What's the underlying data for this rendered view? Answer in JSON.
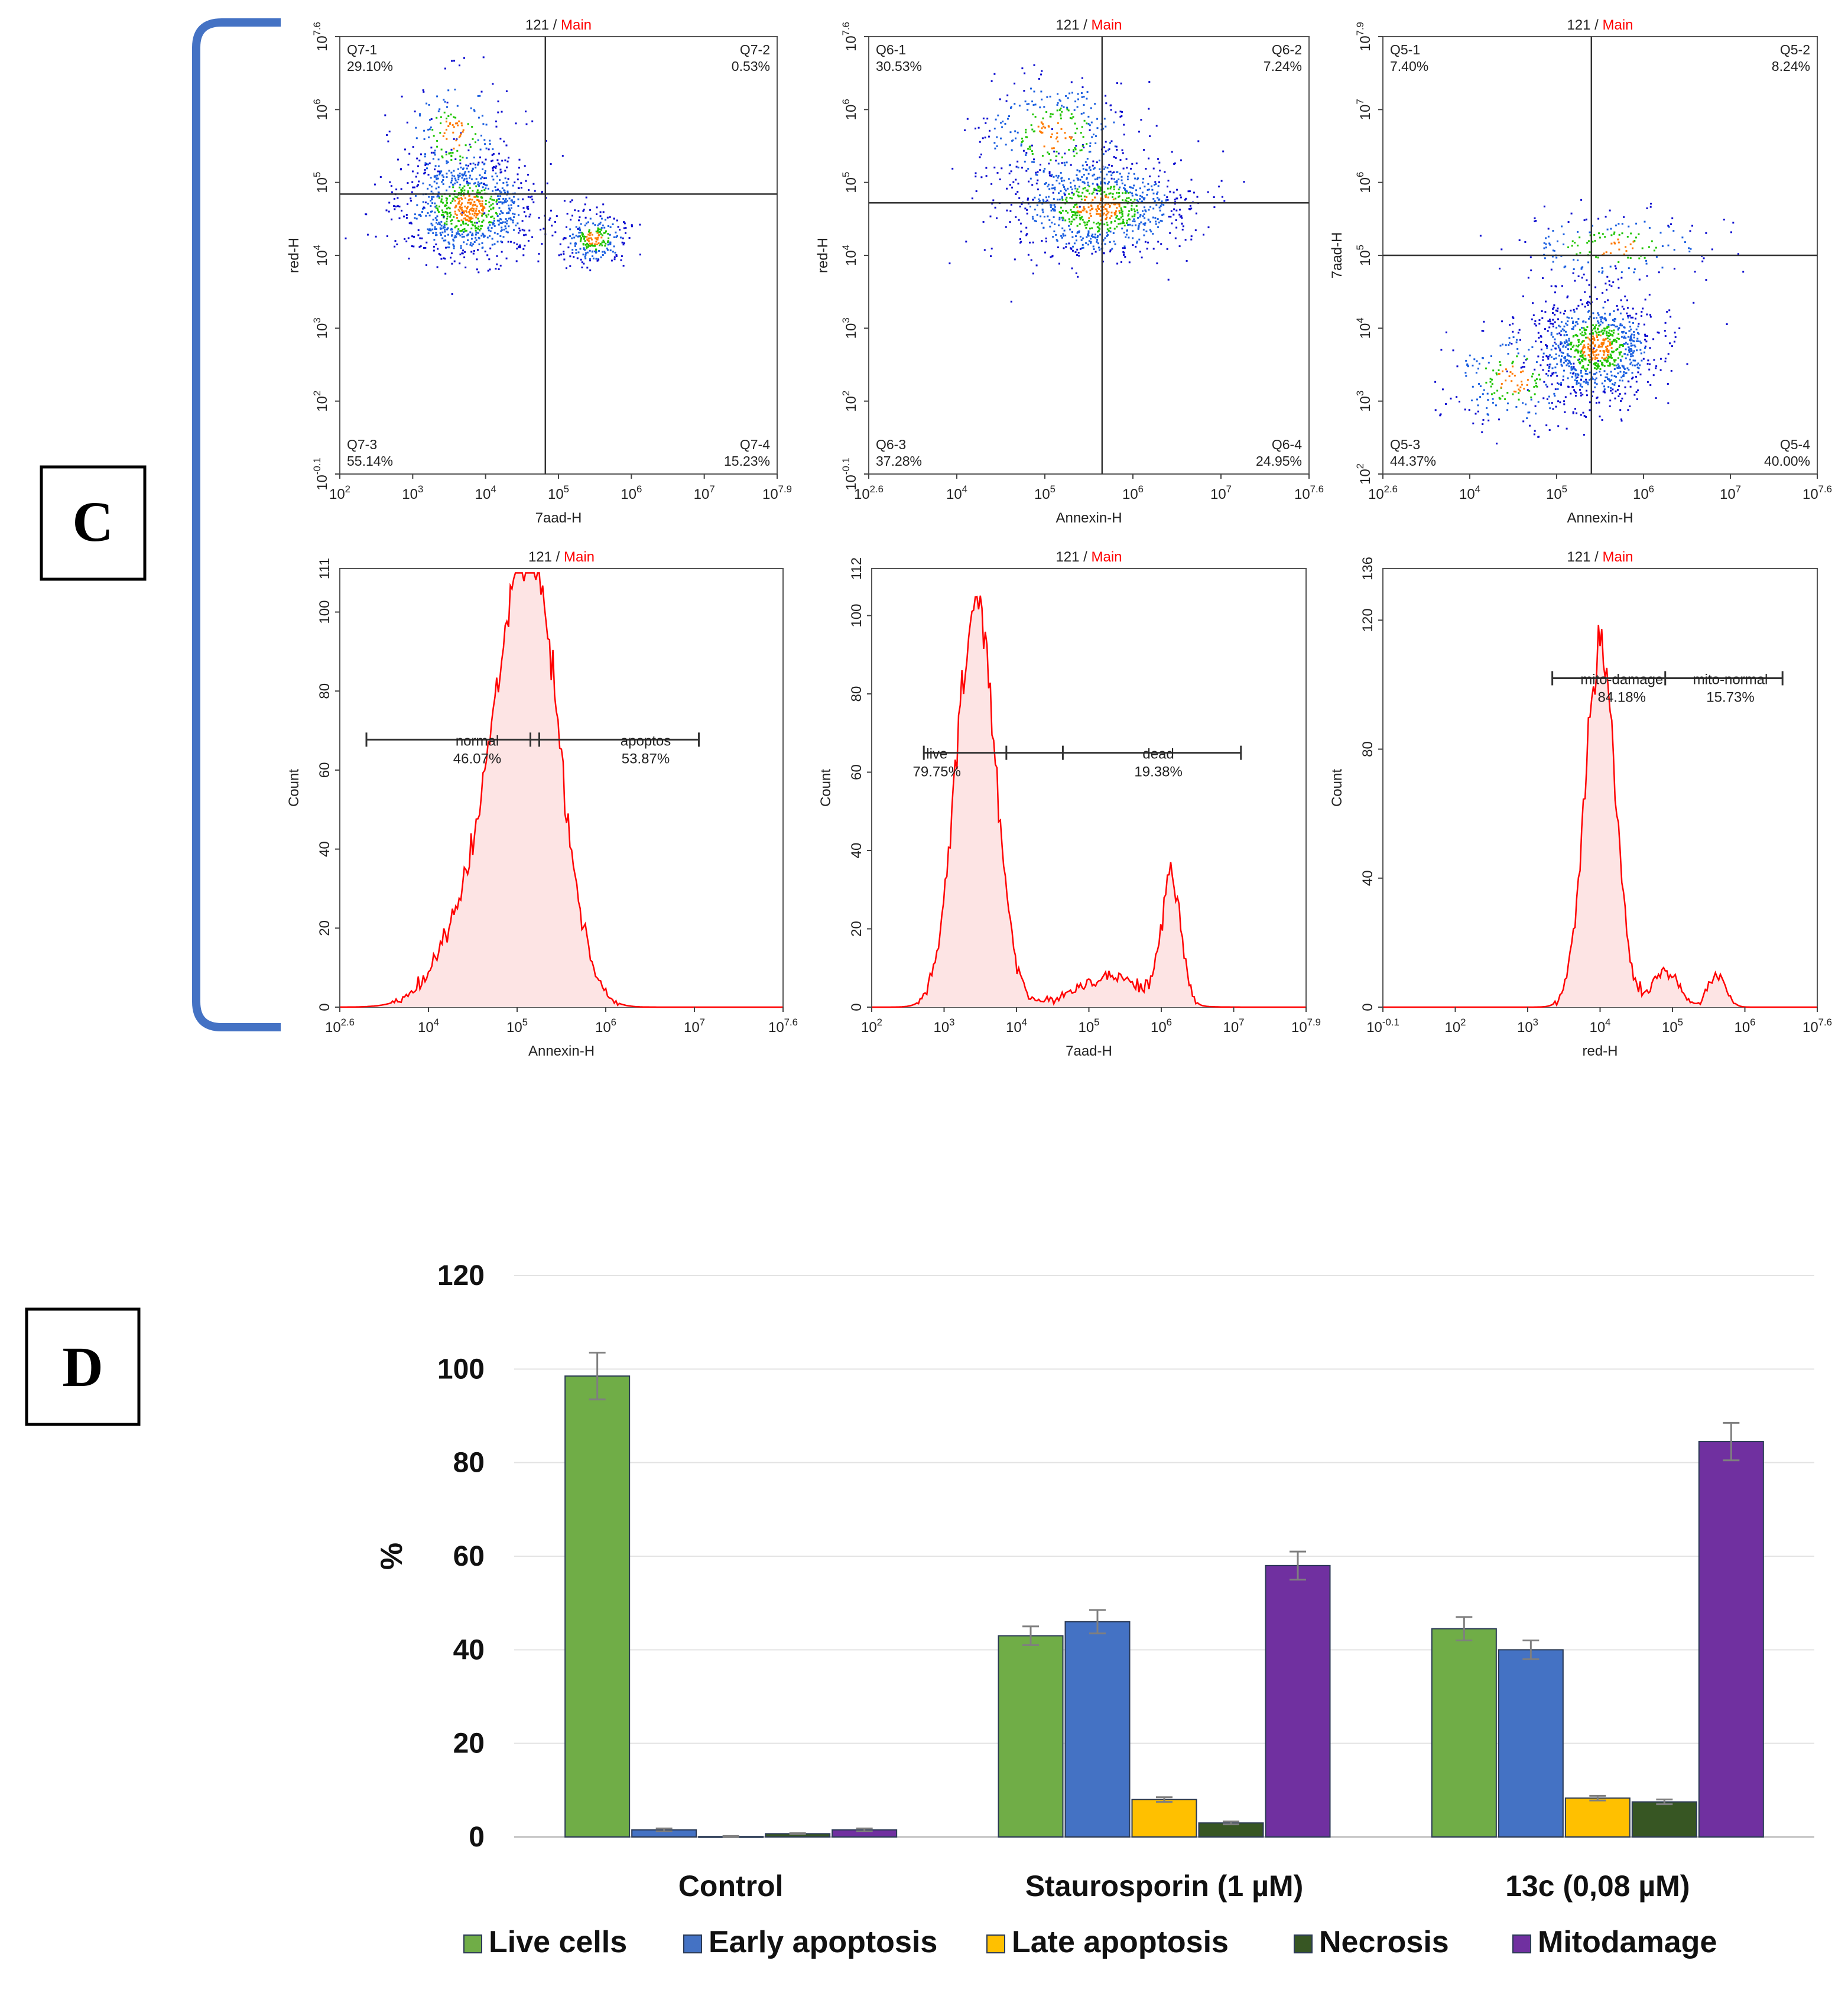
{
  "panel_c": {
    "label": "C",
    "scatter_plots": [
      {
        "title_id": "121",
        "title_sep": " / ",
        "title_gate": "Main",
        "xlabel": "7aad-H",
        "ylabel": "red-H",
        "xticks": [
          {
            "base": "10",
            "exp": "2"
          },
          {
            "base": "10",
            "exp": "3"
          },
          {
            "base": "10",
            "exp": "4"
          },
          {
            "base": "10",
            "exp": "5"
          },
          {
            "base": "10",
            "exp": "6"
          },
          {
            "base": "10",
            "exp": "7"
          },
          {
            "base": "10",
            "exp": "7.9"
          }
        ],
        "yticks": [
          {
            "base": "10",
            "exp": "-0.1"
          },
          {
            "base": "10",
            "exp": "2"
          },
          {
            "base": "10",
            "exp": "3"
          },
          {
            "base": "10",
            "exp": "4"
          },
          {
            "base": "10",
            "exp": "5"
          },
          {
            "base": "10",
            "exp": "6"
          },
          {
            "base": "10",
            "exp": "7.6"
          }
        ],
        "quadrants": {
          "ul": {
            "name": "Q7-1",
            "pct": "29.10%"
          },
          "ur": {
            "name": "Q7-2",
            "pct": "0.53%"
          },
          "ll": {
            "name": "Q7-3",
            "pct": "55.14%"
          },
          "lr": {
            "name": "Q7-4",
            "pct": "15.23%"
          }
        }
      },
      {
        "title_id": "121",
        "title_sep": " / ",
        "title_gate": "Main",
        "xlabel": "Annexin-H",
        "ylabel": "red-H",
        "xticks": [
          {
            "base": "10",
            "exp": "2.6"
          },
          {
            "base": "10",
            "exp": "4"
          },
          {
            "base": "10",
            "exp": "5"
          },
          {
            "base": "10",
            "exp": "6"
          },
          {
            "base": "10",
            "exp": "7"
          },
          {
            "base": "10",
            "exp": "7.6"
          }
        ],
        "yticks": [
          {
            "base": "10",
            "exp": "-0.1"
          },
          {
            "base": "10",
            "exp": "2"
          },
          {
            "base": "10",
            "exp": "3"
          },
          {
            "base": "10",
            "exp": "4"
          },
          {
            "base": "10",
            "exp": "5"
          },
          {
            "base": "10",
            "exp": "6"
          },
          {
            "base": "10",
            "exp": "7.6"
          }
        ],
        "quadrants": {
          "ul": {
            "name": "Q6-1",
            "pct": "30.53%"
          },
          "ur": {
            "name": "Q6-2",
            "pct": "7.24%"
          },
          "ll": {
            "name": "Q6-3",
            "pct": "37.28%"
          },
          "lr": {
            "name": "Q6-4",
            "pct": "24.95%"
          }
        }
      },
      {
        "title_id": "121",
        "title_sep": " / ",
        "title_gate": "Main",
        "xlabel": "Annexin-H",
        "ylabel": "7aad-H",
        "xticks": [
          {
            "base": "10",
            "exp": "2.6"
          },
          {
            "base": "10",
            "exp": "4"
          },
          {
            "base": "10",
            "exp": "5"
          },
          {
            "base": "10",
            "exp": "6"
          },
          {
            "base": "10",
            "exp": "7"
          },
          {
            "base": "10",
            "exp": "7.6"
          }
        ],
        "yticks": [
          {
            "base": "10",
            "exp": "2"
          },
          {
            "base": "10",
            "exp": "3"
          },
          {
            "base": "10",
            "exp": "4"
          },
          {
            "base": "10",
            "exp": "5"
          },
          {
            "base": "10",
            "exp": "6"
          },
          {
            "base": "10",
            "exp": "7"
          },
          {
            "base": "10",
            "exp": "7.9"
          }
        ],
        "quadrants": {
          "ul": {
            "name": "Q5-1",
            "pct": "7.40%"
          },
          "ur": {
            "name": "Q5-2",
            "pct": "8.24%"
          },
          "ll": {
            "name": "Q5-3",
            "pct": "44.37%"
          },
          "lr": {
            "name": "Q5-4",
            "pct": "40.00%"
          }
        }
      }
    ],
    "histograms": [
      {
        "title_id": "121",
        "title_sep": " / ",
        "title_gate": "Main",
        "xlabel": "Annexin-H",
        "ylabel": "Count",
        "ymax_label": "111",
        "yticks": [
          "0",
          "20",
          "40",
          "60",
          "80",
          "100"
        ],
        "xticks": [
          {
            "base": "10",
            "exp": "2.6"
          },
          {
            "base": "10",
            "exp": "4"
          },
          {
            "base": "10",
            "exp": "5"
          },
          {
            "base": "10",
            "exp": "6"
          },
          {
            "base": "10",
            "exp": "7"
          },
          {
            "base": "10",
            "exp": "7.6"
          }
        ],
        "gates": [
          {
            "name": "normal",
            "pct": "46.07%"
          },
          {
            "name": "apoptos",
            "pct": "53.87%"
          }
        ]
      },
      {
        "title_id": "121",
        "title_sep": " / ",
        "title_gate": "Main",
        "xlabel": "7aad-H",
        "ylabel": "Count",
        "ymax_label": "112",
        "yticks": [
          "0",
          "20",
          "40",
          "60",
          "80",
          "100"
        ],
        "xticks": [
          {
            "base": "10",
            "exp": "2"
          },
          {
            "base": "10",
            "exp": "3"
          },
          {
            "base": "10",
            "exp": "4"
          },
          {
            "base": "10",
            "exp": "5"
          },
          {
            "base": "10",
            "exp": "6"
          },
          {
            "base": "10",
            "exp": "7"
          },
          {
            "base": "10",
            "exp": "7.9"
          }
        ],
        "gates": [
          {
            "name": "live",
            "pct": "79.75%"
          },
          {
            "name": "dead",
            "pct": "19.38%"
          }
        ]
      },
      {
        "title_id": "121",
        "title_sep": " / ",
        "title_gate": "Main",
        "xlabel": "red-H",
        "ylabel": "Count",
        "ymax_label": "136",
        "yticks": [
          "0",
          "40",
          "80",
          "120"
        ],
        "xticks": [
          {
            "base": "10",
            "exp": "-0.1"
          },
          {
            "base": "10",
            "exp": "2"
          },
          {
            "base": "10",
            "exp": "3"
          },
          {
            "base": "10",
            "exp": "4"
          },
          {
            "base": "10",
            "exp": "5"
          },
          {
            "base": "10",
            "exp": "6"
          },
          {
            "base": "10",
            "exp": "7.6"
          }
        ],
        "gates": [
          {
            "name": "mito-damage",
            "pct": "84.18%"
          },
          {
            "name": "mito-normal",
            "pct": "15.73%"
          }
        ]
      }
    ]
  },
  "colors": {
    "bracket": "#4472c4",
    "gate_text": "#ff0000",
    "histogram_line": "#ff0000",
    "histogram_fill": "#fde4e4",
    "live": "#70ad47",
    "early": "#4472c4",
    "late": "#ffc000",
    "necrosis": "#375623",
    "mito": "#7030a0"
  },
  "panel_d": {
    "label": "D"
  },
  "chart_data": {
    "type": "bar",
    "title": "",
    "xlabel": "",
    "ylabel": "%",
    "ylim": [
      0,
      120
    ],
    "yticks": [
      "0",
      "20",
      "40",
      "60",
      "80",
      "100",
      "120"
    ],
    "grid": true,
    "legend_position": "bottom",
    "categories": [
      "Control",
      "Staurosporin (1 µM)",
      "13c (0,08 µM)"
    ],
    "series": [
      {
        "name": "Live cells",
        "color_key": "live",
        "values": [
          98.5,
          43.0,
          44.5
        ],
        "errors": [
          5.0,
          2.0,
          2.5
        ]
      },
      {
        "name": "Early apoptosis",
        "color_key": "early",
        "values": [
          1.5,
          46.0,
          40.0
        ],
        "errors": [
          0.3,
          2.5,
          2.0
        ]
      },
      {
        "name": "Late apoptosis",
        "color_key": "late",
        "values": [
          0.1,
          8.0,
          8.3
        ],
        "errors": [
          0.1,
          0.5,
          0.5
        ]
      },
      {
        "name": "Necrosis",
        "color_key": "necrosis",
        "values": [
          0.7,
          3.0,
          7.5
        ],
        "errors": [
          0.1,
          0.3,
          0.5
        ]
      },
      {
        "name": "Mitodamage",
        "color_key": "mito",
        "values": [
          1.5,
          58.0,
          84.5
        ],
        "errors": [
          0.3,
          3.0,
          4.0
        ]
      }
    ]
  }
}
